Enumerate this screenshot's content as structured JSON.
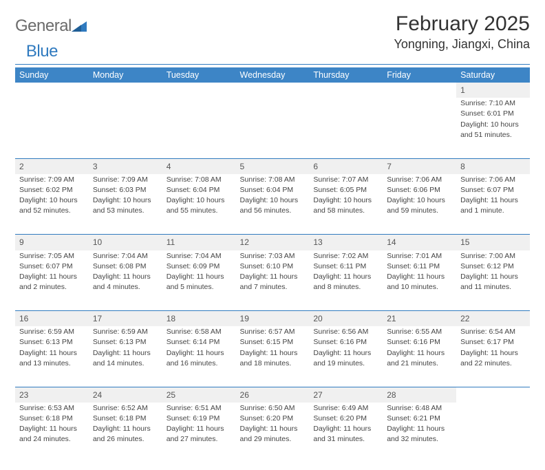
{
  "logo": {
    "text1": "General",
    "text2": "Blue"
  },
  "title": "February 2025",
  "location": "Yongning, Jiangxi, China",
  "colors": {
    "header_bg": "#3d85c6",
    "rule": "#2f7abf",
    "daynum_bg": "#f0f0f0",
    "text": "#333333"
  },
  "weekdays": [
    "Sunday",
    "Monday",
    "Tuesday",
    "Wednesday",
    "Thursday",
    "Friday",
    "Saturday"
  ],
  "weeks": [
    [
      null,
      null,
      null,
      null,
      null,
      null,
      {
        "n": "1",
        "sr": "Sunrise: 7:10 AM",
        "ss": "Sunset: 6:01 PM",
        "dl1": "Daylight: 10 hours",
        "dl2": "and 51 minutes."
      }
    ],
    [
      {
        "n": "2",
        "sr": "Sunrise: 7:09 AM",
        "ss": "Sunset: 6:02 PM",
        "dl1": "Daylight: 10 hours",
        "dl2": "and 52 minutes."
      },
      {
        "n": "3",
        "sr": "Sunrise: 7:09 AM",
        "ss": "Sunset: 6:03 PM",
        "dl1": "Daylight: 10 hours",
        "dl2": "and 53 minutes."
      },
      {
        "n": "4",
        "sr": "Sunrise: 7:08 AM",
        "ss": "Sunset: 6:04 PM",
        "dl1": "Daylight: 10 hours",
        "dl2": "and 55 minutes."
      },
      {
        "n": "5",
        "sr": "Sunrise: 7:08 AM",
        "ss": "Sunset: 6:04 PM",
        "dl1": "Daylight: 10 hours",
        "dl2": "and 56 minutes."
      },
      {
        "n": "6",
        "sr": "Sunrise: 7:07 AM",
        "ss": "Sunset: 6:05 PM",
        "dl1": "Daylight: 10 hours",
        "dl2": "and 58 minutes."
      },
      {
        "n": "7",
        "sr": "Sunrise: 7:06 AM",
        "ss": "Sunset: 6:06 PM",
        "dl1": "Daylight: 10 hours",
        "dl2": "and 59 minutes."
      },
      {
        "n": "8",
        "sr": "Sunrise: 7:06 AM",
        "ss": "Sunset: 6:07 PM",
        "dl1": "Daylight: 11 hours",
        "dl2": "and 1 minute."
      }
    ],
    [
      {
        "n": "9",
        "sr": "Sunrise: 7:05 AM",
        "ss": "Sunset: 6:07 PM",
        "dl1": "Daylight: 11 hours",
        "dl2": "and 2 minutes."
      },
      {
        "n": "10",
        "sr": "Sunrise: 7:04 AM",
        "ss": "Sunset: 6:08 PM",
        "dl1": "Daylight: 11 hours",
        "dl2": "and 4 minutes."
      },
      {
        "n": "11",
        "sr": "Sunrise: 7:04 AM",
        "ss": "Sunset: 6:09 PM",
        "dl1": "Daylight: 11 hours",
        "dl2": "and 5 minutes."
      },
      {
        "n": "12",
        "sr": "Sunrise: 7:03 AM",
        "ss": "Sunset: 6:10 PM",
        "dl1": "Daylight: 11 hours",
        "dl2": "and 7 minutes."
      },
      {
        "n": "13",
        "sr": "Sunrise: 7:02 AM",
        "ss": "Sunset: 6:11 PM",
        "dl1": "Daylight: 11 hours",
        "dl2": "and 8 minutes."
      },
      {
        "n": "14",
        "sr": "Sunrise: 7:01 AM",
        "ss": "Sunset: 6:11 PM",
        "dl1": "Daylight: 11 hours",
        "dl2": "and 10 minutes."
      },
      {
        "n": "15",
        "sr": "Sunrise: 7:00 AM",
        "ss": "Sunset: 6:12 PM",
        "dl1": "Daylight: 11 hours",
        "dl2": "and 11 minutes."
      }
    ],
    [
      {
        "n": "16",
        "sr": "Sunrise: 6:59 AM",
        "ss": "Sunset: 6:13 PM",
        "dl1": "Daylight: 11 hours",
        "dl2": "and 13 minutes."
      },
      {
        "n": "17",
        "sr": "Sunrise: 6:59 AM",
        "ss": "Sunset: 6:13 PM",
        "dl1": "Daylight: 11 hours",
        "dl2": "and 14 minutes."
      },
      {
        "n": "18",
        "sr": "Sunrise: 6:58 AM",
        "ss": "Sunset: 6:14 PM",
        "dl1": "Daylight: 11 hours",
        "dl2": "and 16 minutes."
      },
      {
        "n": "19",
        "sr": "Sunrise: 6:57 AM",
        "ss": "Sunset: 6:15 PM",
        "dl1": "Daylight: 11 hours",
        "dl2": "and 18 minutes."
      },
      {
        "n": "20",
        "sr": "Sunrise: 6:56 AM",
        "ss": "Sunset: 6:16 PM",
        "dl1": "Daylight: 11 hours",
        "dl2": "and 19 minutes."
      },
      {
        "n": "21",
        "sr": "Sunrise: 6:55 AM",
        "ss": "Sunset: 6:16 PM",
        "dl1": "Daylight: 11 hours",
        "dl2": "and 21 minutes."
      },
      {
        "n": "22",
        "sr": "Sunrise: 6:54 AM",
        "ss": "Sunset: 6:17 PM",
        "dl1": "Daylight: 11 hours",
        "dl2": "and 22 minutes."
      }
    ],
    [
      {
        "n": "23",
        "sr": "Sunrise: 6:53 AM",
        "ss": "Sunset: 6:18 PM",
        "dl1": "Daylight: 11 hours",
        "dl2": "and 24 minutes."
      },
      {
        "n": "24",
        "sr": "Sunrise: 6:52 AM",
        "ss": "Sunset: 6:18 PM",
        "dl1": "Daylight: 11 hours",
        "dl2": "and 26 minutes."
      },
      {
        "n": "25",
        "sr": "Sunrise: 6:51 AM",
        "ss": "Sunset: 6:19 PM",
        "dl1": "Daylight: 11 hours",
        "dl2": "and 27 minutes."
      },
      {
        "n": "26",
        "sr": "Sunrise: 6:50 AM",
        "ss": "Sunset: 6:20 PM",
        "dl1": "Daylight: 11 hours",
        "dl2": "and 29 minutes."
      },
      {
        "n": "27",
        "sr": "Sunrise: 6:49 AM",
        "ss": "Sunset: 6:20 PM",
        "dl1": "Daylight: 11 hours",
        "dl2": "and 31 minutes."
      },
      {
        "n": "28",
        "sr": "Sunrise: 6:48 AM",
        "ss": "Sunset: 6:21 PM",
        "dl1": "Daylight: 11 hours",
        "dl2": "and 32 minutes."
      },
      null
    ]
  ]
}
